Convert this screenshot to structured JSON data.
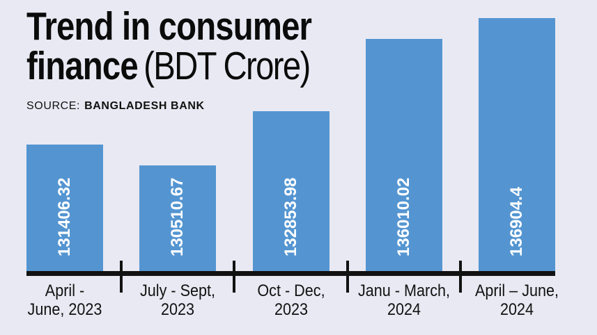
{
  "page": {
    "background": "#e9e9f3"
  },
  "title": {
    "line1": "Trend in consumer",
    "line2_bold": "finance",
    "line2_rest": "(BDT Crore)"
  },
  "source": {
    "label": "SOURCE:",
    "value": "BANGLADESH BANK"
  },
  "chart_data": {
    "type": "bar",
    "title": "Trend in consumer finance (BDT Crore)",
    "source": "SOURCE: BANGLADESH BANK",
    "unit": "BDT Crore",
    "categories": [
      "April - June, 2023",
      "July - Sept, 2023",
      "Oct - Dec, 2023",
      "Janu - March, 2024",
      "April – June, 2024"
    ],
    "category_lines": [
      [
        "April -",
        "June, 2023"
      ],
      [
        "July - Sept,",
        "2023"
      ],
      [
        "Oct - Dec,",
        "2023"
      ],
      [
        "Janu - March,",
        "2024"
      ],
      [
        "April – June,",
        "2024"
      ]
    ],
    "values": [
      131406.32,
      130510.67,
      132853.98,
      136010.02,
      136904.4
    ],
    "value_labels": [
      "131406.32",
      "130510.67",
      "132853.98",
      "136010.02",
      "136904.4"
    ],
    "xlabel": "",
    "ylabel": "",
    "ylim": [
      125900,
      137000
    ],
    "grid": false,
    "legend": false,
    "bar_color": "#5495d1",
    "axis_color": "#121212",
    "value_label_color": "#ffffff",
    "value_label_position": "inside-bottom-vertical"
  }
}
